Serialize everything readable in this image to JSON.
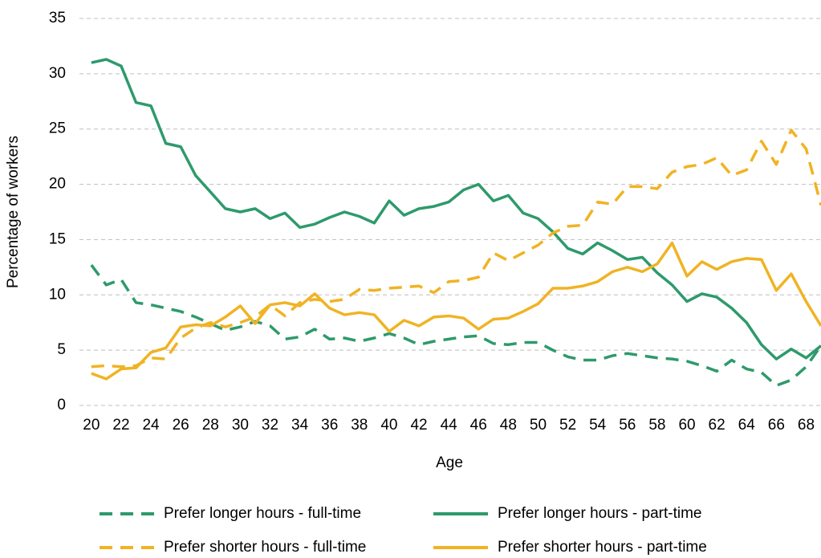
{
  "chart_data": {
    "type": "line",
    "x_label": "Age",
    "y_label": "Percentage of workers",
    "x": [
      20,
      21,
      22,
      23,
      24,
      25,
      26,
      27,
      28,
      29,
      30,
      31,
      32,
      33,
      34,
      35,
      36,
      37,
      38,
      39,
      40,
      41,
      42,
      43,
      44,
      45,
      46,
      47,
      48,
      49,
      50,
      51,
      52,
      53,
      54,
      55,
      56,
      57,
      58,
      59,
      60,
      61,
      62,
      63,
      64,
      65,
      66,
      67,
      68,
      69
    ],
    "xlim": [
      19.2,
      69
    ],
    "xticks": [
      20,
      22,
      24,
      26,
      28,
      30,
      32,
      34,
      36,
      38,
      40,
      42,
      44,
      46,
      48,
      50,
      52,
      54,
      56,
      58,
      60,
      62,
      64,
      66,
      68
    ],
    "ylim": [
      0,
      35
    ],
    "yticks": [
      0,
      5,
      10,
      15,
      20,
      25,
      30,
      35
    ],
    "grid": true,
    "series": [
      {
        "name": "Prefer longer hours - full-time",
        "color": "#2e9a6c",
        "dashed": true,
        "values": [
          12.7,
          10.9,
          11.4,
          9.3,
          9.1,
          8.8,
          8.5,
          8.0,
          7.4,
          6.8,
          7.1,
          7.6,
          7.2,
          6.0,
          6.2,
          6.9,
          6.0,
          6.1,
          5.8,
          6.1,
          6.5,
          6.1,
          5.5,
          5.8,
          6.0,
          6.2,
          6.3,
          5.6,
          5.5,
          5.7,
          5.7,
          5.0,
          4.4,
          4.1,
          4.1,
          4.5,
          4.7,
          4.5,
          4.3,
          4.2,
          4.0,
          3.6,
          3.1,
          4.1,
          3.3,
          3.0,
          1.8,
          2.3,
          3.5,
          5.4
        ]
      },
      {
        "name": "Prefer longer hours - part-time",
        "color": "#2e9a6c",
        "dashed": false,
        "values": [
          31.0,
          31.3,
          30.7,
          27.4,
          27.1,
          23.7,
          23.4,
          20.8,
          19.3,
          17.8,
          17.5,
          17.8,
          16.9,
          17.4,
          16.1,
          16.4,
          17.0,
          17.5,
          17.1,
          16.5,
          18.5,
          17.2,
          17.8,
          18.0,
          18.4,
          19.5,
          20.0,
          18.5,
          19.0,
          17.4,
          16.9,
          15.7,
          14.2,
          13.7,
          14.7,
          14.0,
          13.2,
          13.4,
          12.0,
          10.9,
          9.4,
          10.1,
          9.8,
          8.8,
          7.5,
          5.5,
          4.2,
          5.1,
          4.3,
          5.4
        ]
      },
      {
        "name": "Prefer shorter hours - full-time",
        "color": "#f0b323",
        "dashed": true,
        "values": [
          3.5,
          3.6,
          3.5,
          3.6,
          4.3,
          4.2,
          6.1,
          7.0,
          7.5,
          7.1,
          7.5,
          8.0,
          9.1,
          8.1,
          9.3,
          9.6,
          9.4,
          9.6,
          10.5,
          10.4,
          10.6,
          10.7,
          10.8,
          10.2,
          11.2,
          11.3,
          11.6,
          13.8,
          13.1,
          13.8,
          14.5,
          15.6,
          16.2,
          16.3,
          18.4,
          18.2,
          19.8,
          19.8,
          19.6,
          21.1,
          21.6,
          21.8,
          22.4,
          20.8,
          21.3,
          23.9,
          21.8,
          24.9,
          23.2,
          18.1
        ]
      },
      {
        "name": "Prefer shorter hours - part-time",
        "color": "#f0b323",
        "dashed": false,
        "values": [
          2.9,
          2.4,
          3.3,
          3.4,
          4.8,
          5.2,
          7.1,
          7.3,
          7.2,
          8.0,
          9.0,
          7.4,
          9.1,
          9.3,
          9.0,
          10.1,
          8.8,
          8.2,
          8.4,
          8.2,
          6.7,
          7.7,
          7.2,
          8.0,
          8.1,
          7.9,
          6.9,
          7.8,
          7.9,
          8.5,
          9.2,
          10.6,
          10.6,
          10.8,
          11.2,
          12.1,
          12.5,
          12.1,
          12.8,
          14.7,
          11.7,
          13.0,
          12.3,
          13.0,
          13.3,
          13.2,
          10.4,
          11.9,
          9.4,
          7.2
        ]
      }
    ]
  }
}
